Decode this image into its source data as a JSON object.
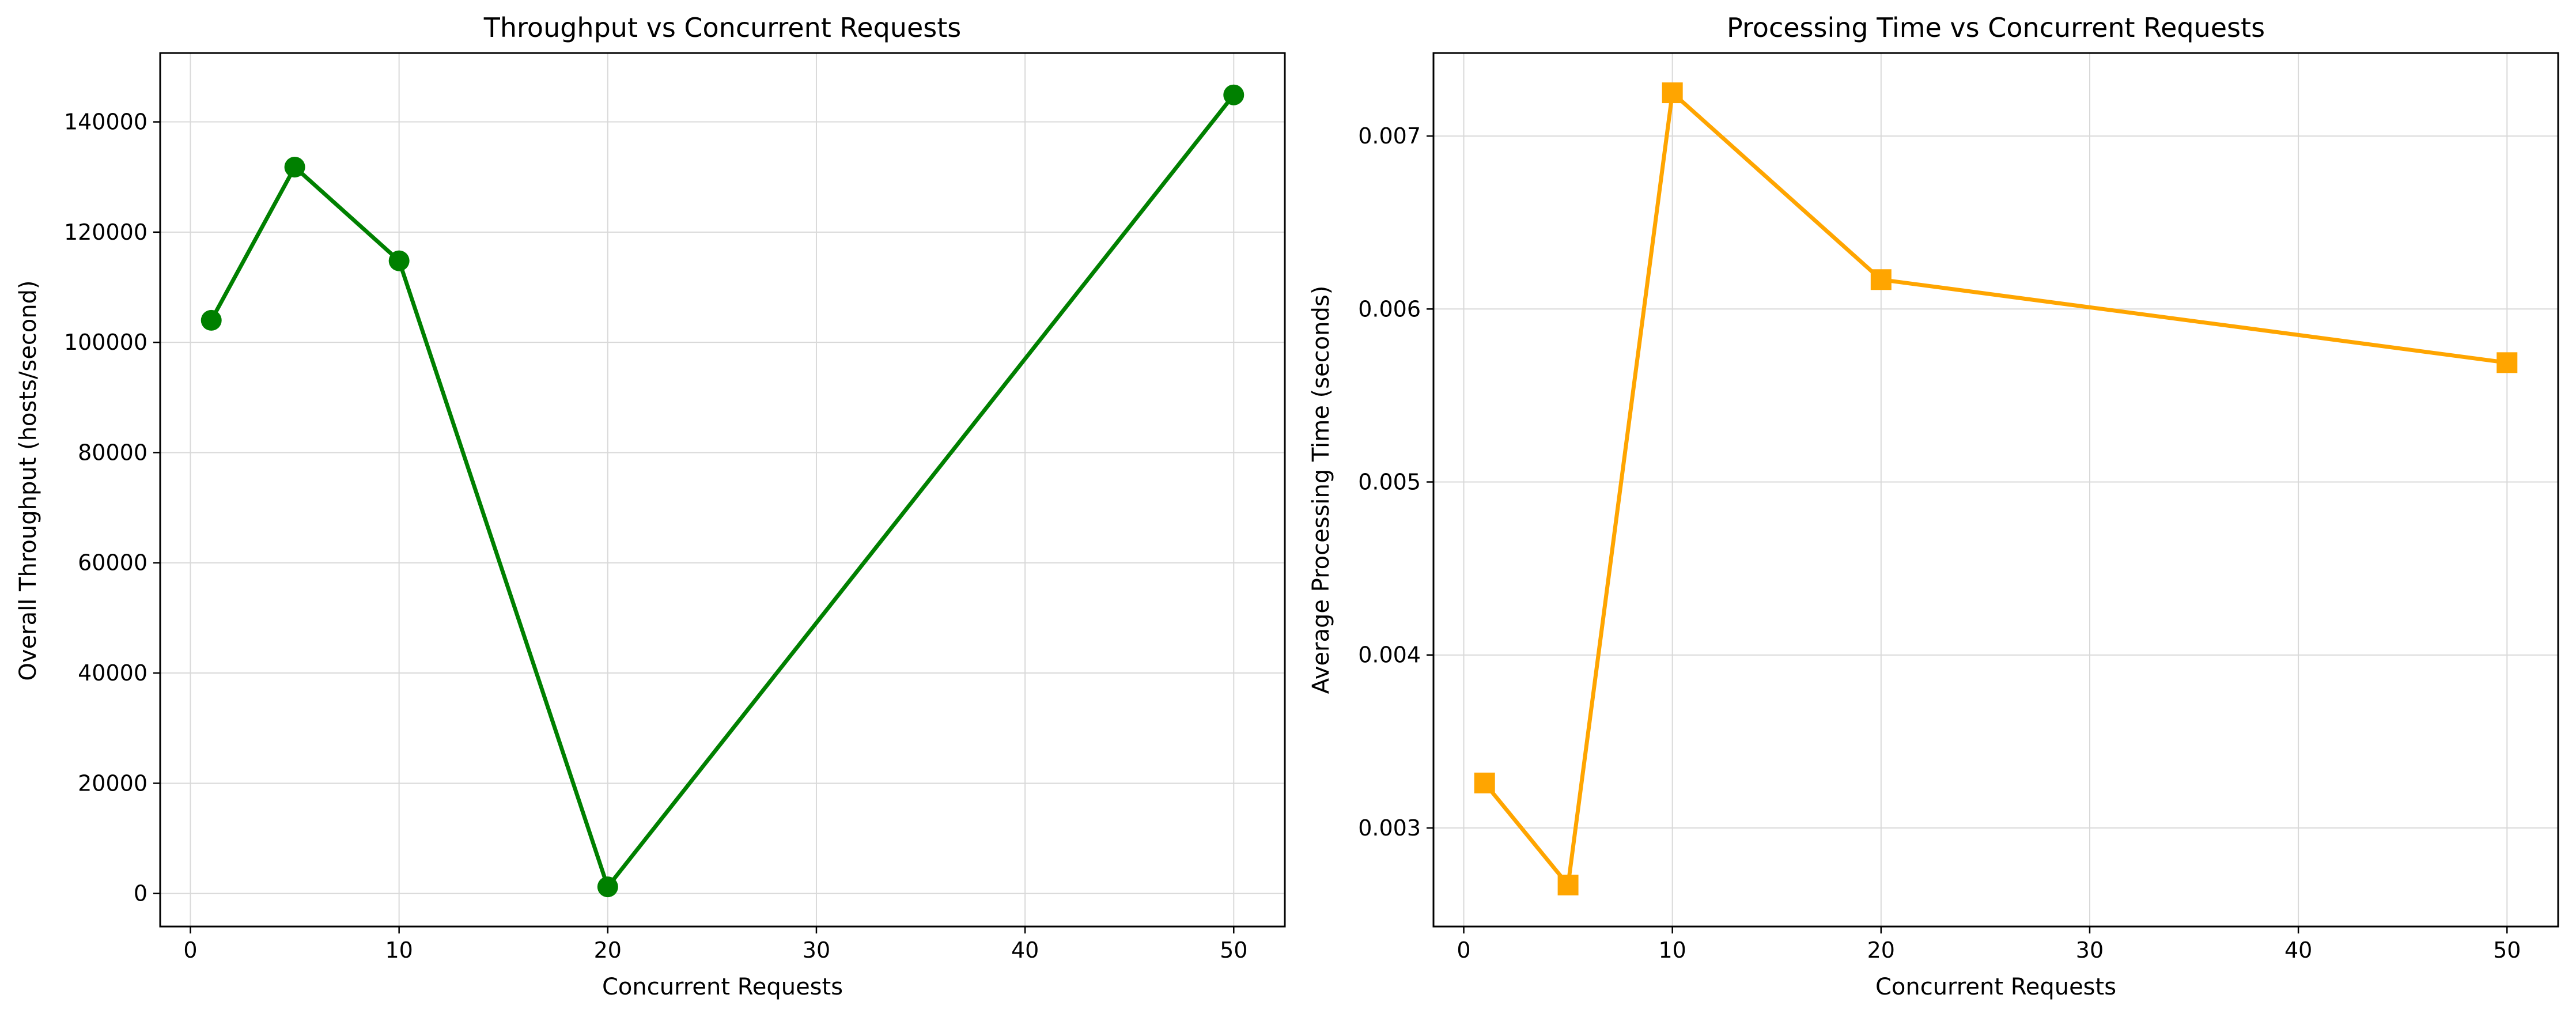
{
  "chart_data": [
    {
      "type": "line",
      "title": "Throughput vs Concurrent Requests",
      "xlabel": "Concurrent Requests",
      "ylabel": "Overall Throughput (hosts/second)",
      "xlim": [
        -1.45,
        52.45
      ],
      "ylim": [
        -6000,
        152500
      ],
      "xticks": [
        0,
        10,
        20,
        30,
        40,
        50
      ],
      "xtick_labels": [
        "0",
        "10",
        "20",
        "30",
        "40",
        "50"
      ],
      "yticks": [
        0,
        20000,
        40000,
        60000,
        80000,
        100000,
        120000,
        140000
      ],
      "ytick_labels": [
        "0",
        "20000",
        "40000",
        "60000",
        "80000",
        "100000",
        "120000",
        "140000"
      ],
      "grid": true,
      "marker": "circle",
      "color": "#008000",
      "x": [
        1,
        5,
        10,
        20,
        50
      ],
      "y": [
        104000,
        131800,
        114800,
        1200,
        144900
      ]
    },
    {
      "type": "line",
      "title": "Processing Time vs Concurrent Requests",
      "xlabel": "Concurrent Requests",
      "ylabel": "Average Processing Time (seconds)",
      "xlim": [
        -1.45,
        52.45
      ],
      "ylim": [
        0.00243,
        0.00748
      ],
      "xticks": [
        0,
        10,
        20,
        30,
        40,
        50
      ],
      "xtick_labels": [
        "0",
        "10",
        "20",
        "30",
        "40",
        "50"
      ],
      "yticks": [
        0.003,
        0.004,
        0.005,
        0.006,
        0.007
      ],
      "ytick_labels": [
        "0.003",
        "0.004",
        "0.005",
        "0.006",
        "0.007"
      ],
      "grid": true,
      "marker": "square",
      "color": "#ffa500",
      "x": [
        1,
        5,
        10,
        20,
        50
      ],
      "y": [
        0.00326,
        0.00267,
        0.00725,
        0.00617,
        0.00569
      ]
    }
  ]
}
